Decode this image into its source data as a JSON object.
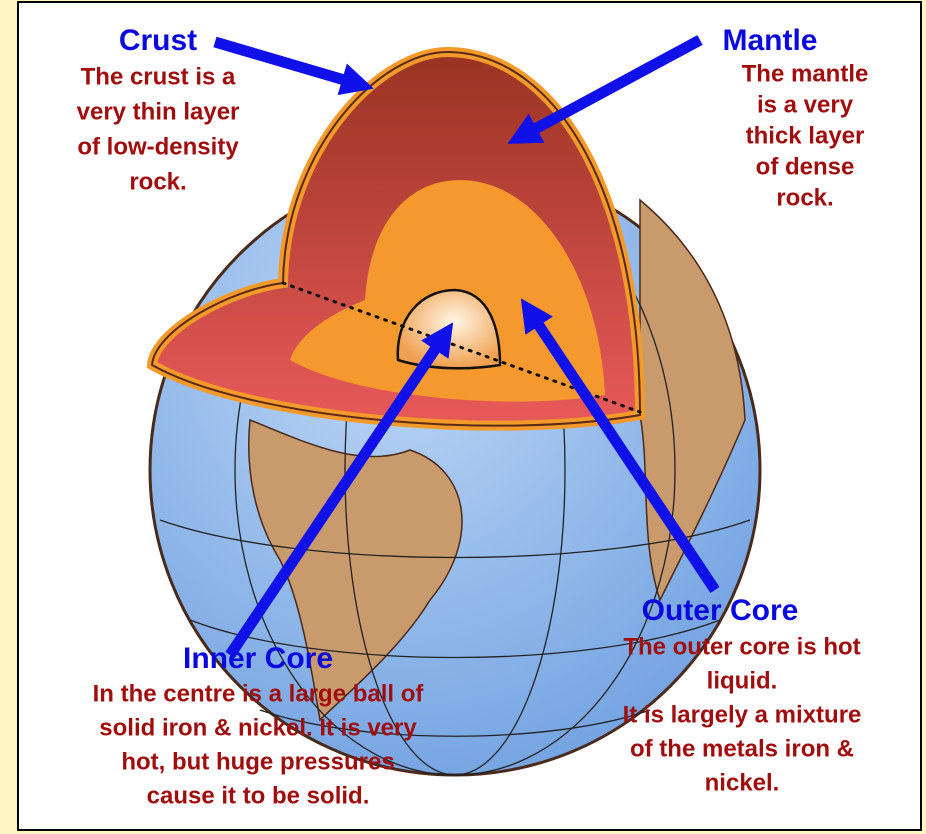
{
  "labels": [
    {
      "title": "Crust",
      "description": [
        "The crust is a",
        "very thin layer",
        "of low-density",
        "rock."
      ]
    },
    {
      "title": "Mantle",
      "description": [
        "The mantle",
        "is a very",
        "thick layer",
        "of dense",
        "rock."
      ]
    },
    {
      "title": "Outer Core",
      "description": [
        "The outer core is hot",
        "liquid.",
        "It is largely a mixture",
        "of the metals iron &",
        "nickel."
      ]
    },
    {
      "title": "Inner Core",
      "description": [
        "In the centre is a large ball of",
        "solid iron & nickel. It is very",
        "hot, but huge pressures",
        "cause it to be solid."
      ]
    }
  ]
}
